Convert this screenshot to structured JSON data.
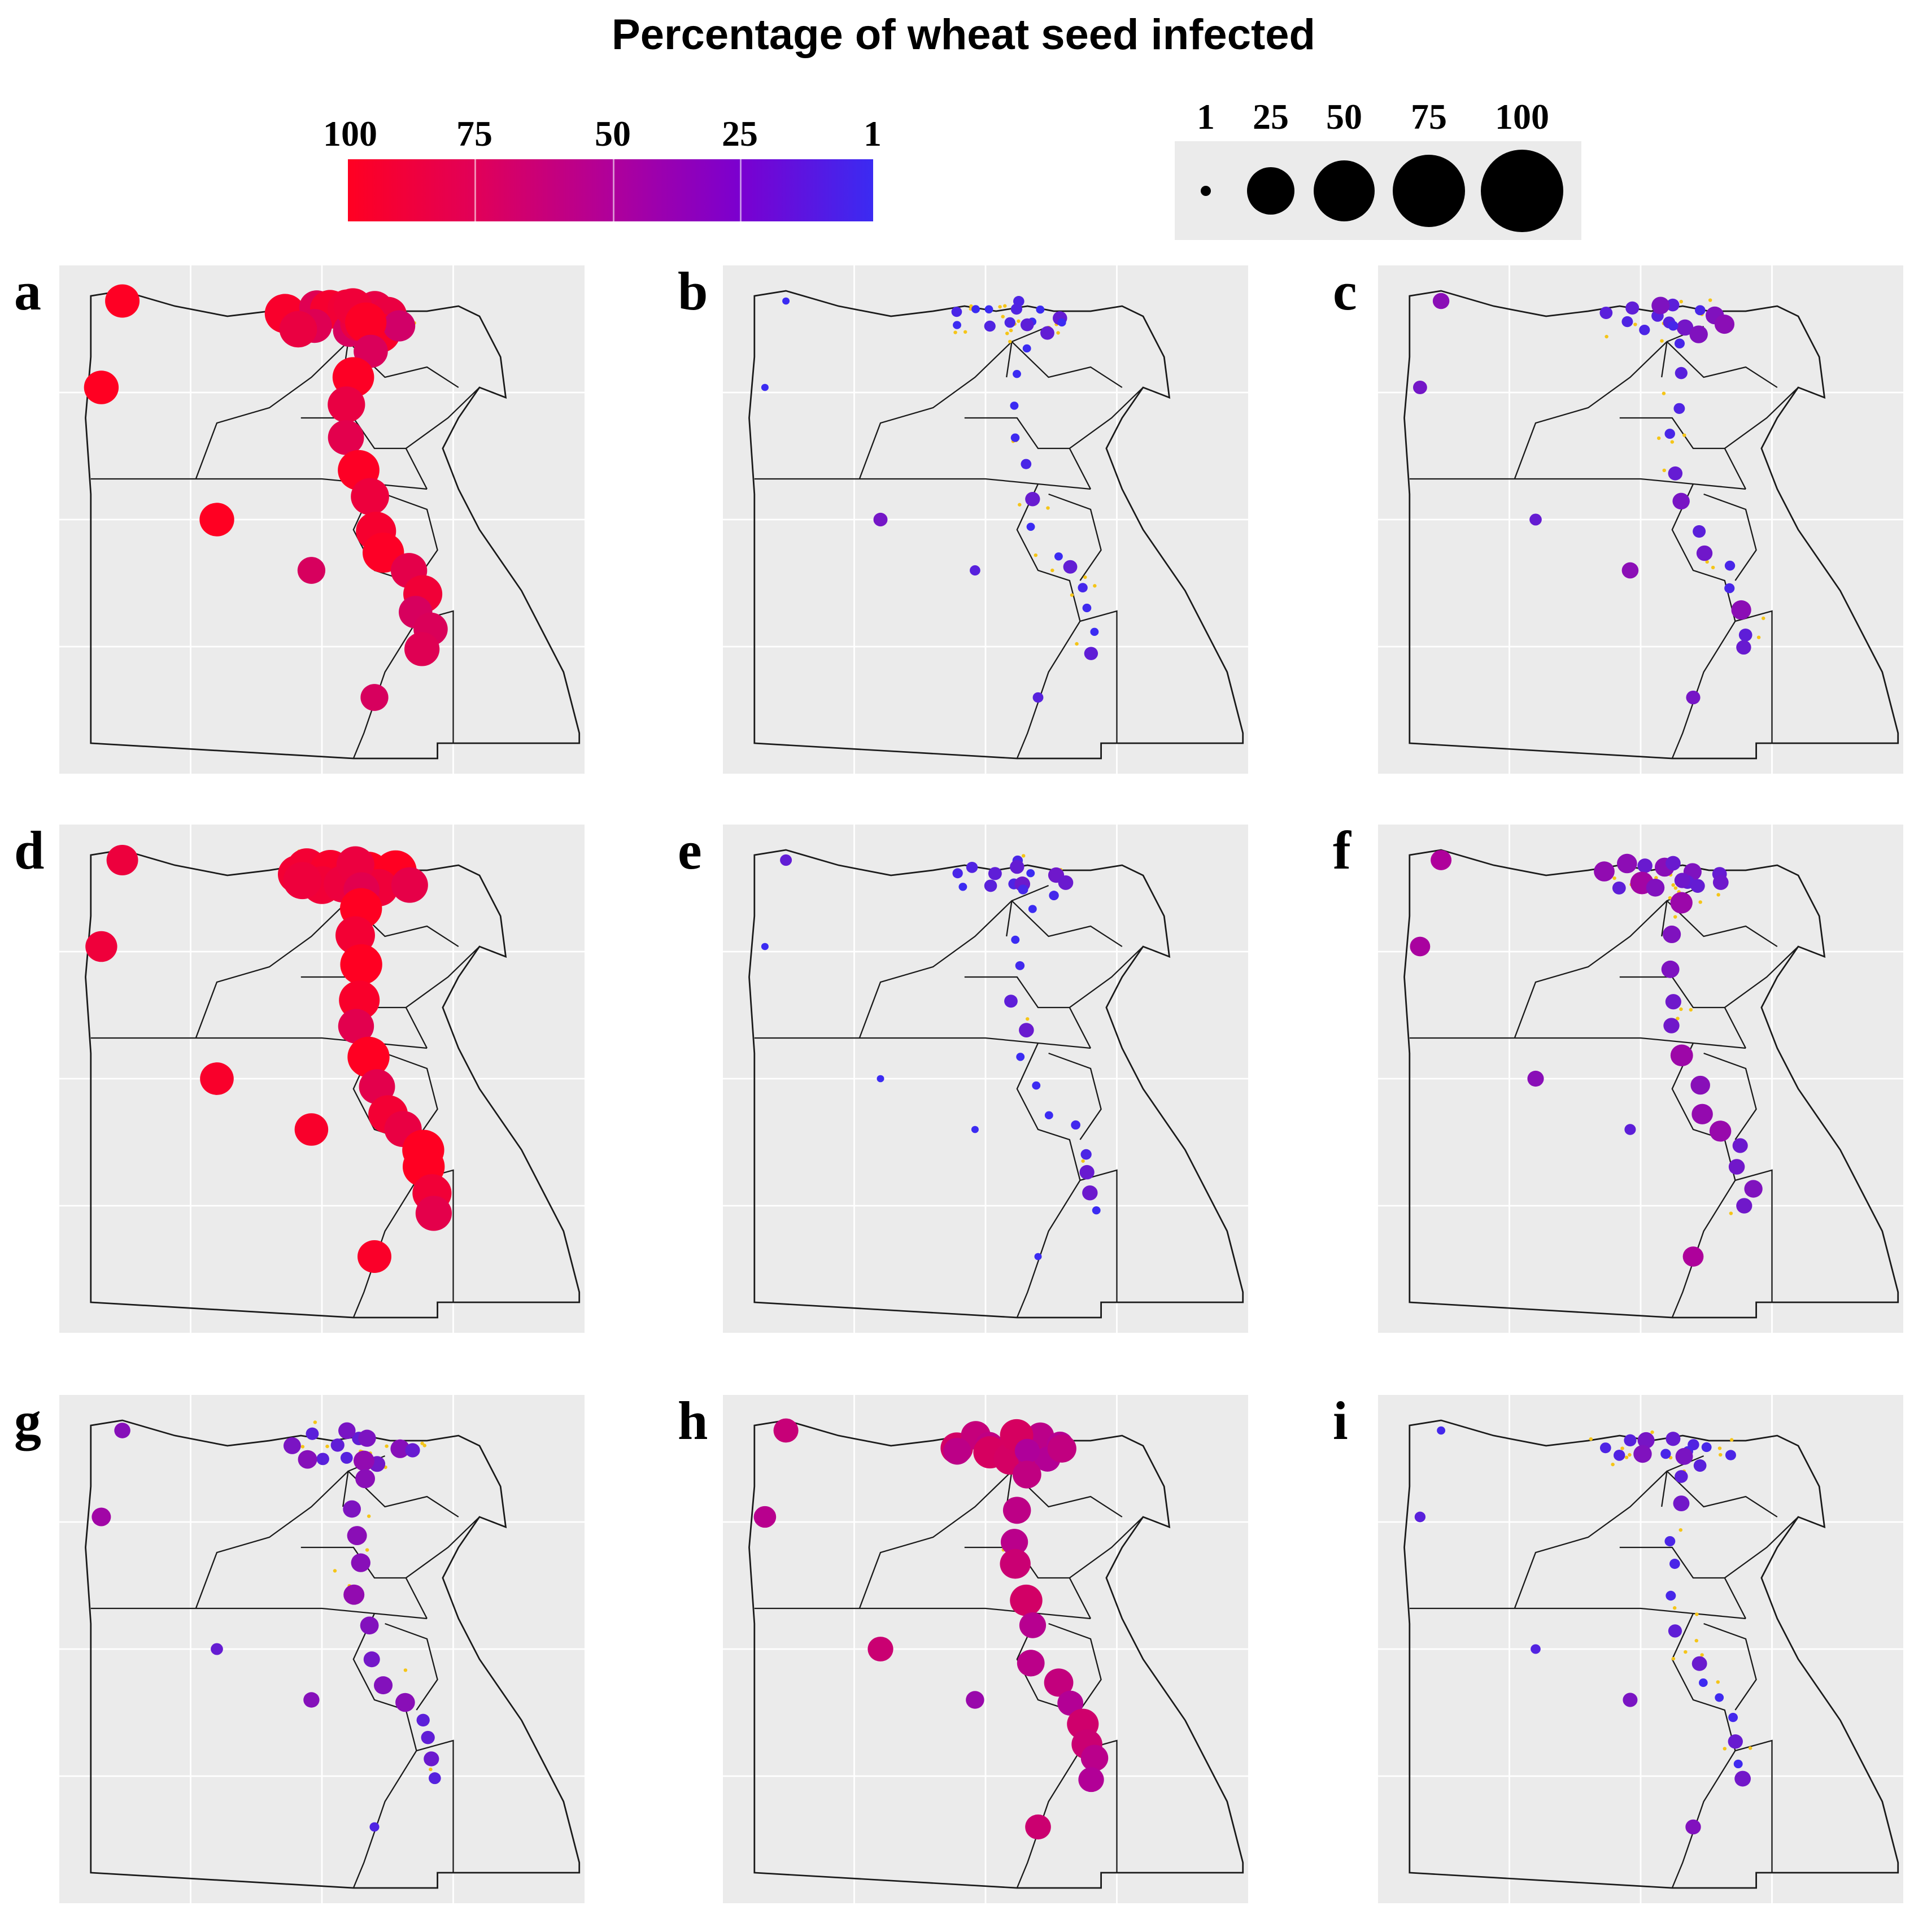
{
  "title": "Percentage of wheat seed infected",
  "color_legend": {
    "labels": [
      "100",
      "75",
      "50",
      "25",
      "1"
    ],
    "colors": {
      "high": "#ff0022",
      "mid": "#b0009a",
      "low": "#3b2bf2"
    }
  },
  "size_legend": {
    "labels": [
      "1",
      "25",
      "50",
      "75",
      "100"
    ]
  },
  "colors": {
    "background": "#ebebeb",
    "grid": "#ffffff",
    "boundary": "#1a1a1a",
    "absent_marker": "#f5c518"
  },
  "panels": [
    {
      "letter": "a"
    },
    {
      "letter": "b"
    },
    {
      "letter": "c"
    },
    {
      "letter": "d"
    },
    {
      "letter": "e"
    },
    {
      "letter": "f"
    },
    {
      "letter": "g"
    },
    {
      "letter": "h"
    },
    {
      "letter": "i"
    }
  ]
}
